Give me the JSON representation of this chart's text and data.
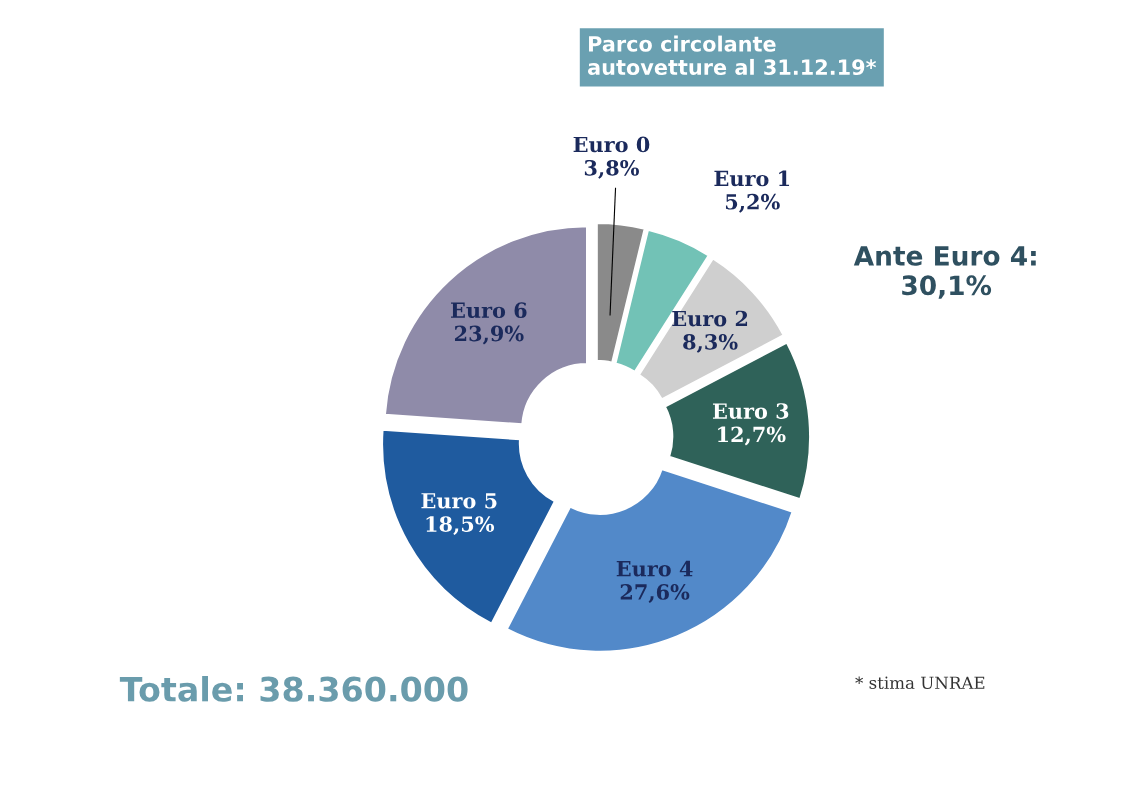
{
  "chart_data": {
    "type": "donut",
    "title": "Parco circolante\nautovetture al 31.12.19*",
    "categories": [
      "Euro 0",
      "Euro 1",
      "Euro 2",
      "Euro 3",
      "Euro 4",
      "Euro 5",
      "Euro 6"
    ],
    "values": [
      3.8,
      5.2,
      8.3,
      12.7,
      27.6,
      18.5,
      23.9
    ],
    "value_labels": [
      "3,8%",
      "5,2%",
      "8,3%",
      "12,7%",
      "27,6%",
      "18,5%",
      "23,9%"
    ],
    "colors": [
      "#8a8a8a",
      "#72c2b6",
      "#cfcfcf",
      "#2f6259",
      "#5289c9",
      "#1f5b9f",
      "#8f8ba9"
    ],
    "annotations": [
      "Ante Euro 4:\n30,1%",
      "Totale: 38.360.000",
      "* stima UNRAE"
    ],
    "legend": false
  }
}
